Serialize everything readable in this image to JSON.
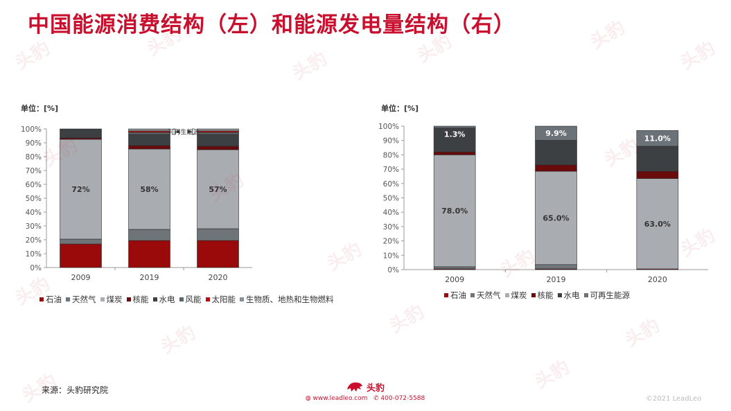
{
  "title": "中国能源消费结构（左）和能源发电量结构（右）",
  "watermark": "头豹",
  "colors": {
    "oil": "#9b0a0a",
    "gas": "#6f7478",
    "coal": "#a9adb1",
    "nuclear": "#6a0b0b",
    "hydro": "#3c4043",
    "wind": "#5e6569",
    "solar": "#b50f0f",
    "biomass": "#8a9094",
    "renew": "#6c7378",
    "axis": "#999999"
  },
  "chart_data": [
    {
      "type": "bar",
      "stacked": true,
      "unit_label": "单位：[%]",
      "categories": [
        "2009",
        "2019",
        "2020"
      ],
      "ylim": [
        0,
        100
      ],
      "yticks": [
        "0%",
        "10%",
        "20%",
        "30%",
        "40%",
        "50%",
        "60%",
        "70%",
        "80%",
        "90%",
        "100%"
      ],
      "series": [
        {
          "name": "石油",
          "color_key": "oil",
          "values": [
            17,
            19.5,
            19.5
          ]
        },
        {
          "name": "天然气",
          "color_key": "gas",
          "values": [
            3.5,
            8,
            8.5
          ]
        },
        {
          "name": "煤炭",
          "color_key": "coal",
          "values": [
            72,
            58,
            57
          ]
        },
        {
          "name": "核能",
          "color_key": "nuclear",
          "values": [
            1,
            2.5,
            2.5
          ]
        },
        {
          "name": "水电",
          "color_key": "hydro",
          "values": [
            6.5,
            8,
            8.5
          ]
        },
        {
          "name": "风能",
          "color_key": "wind",
          "values": [
            0,
            1.5,
            1.5
          ]
        },
        {
          "name": "太阳能",
          "color_key": "solar",
          "values": [
            0,
            1,
            1
          ]
        },
        {
          "name": "生物质、地热和生物燃料",
          "color_key": "biomass",
          "values": [
            0,
            1.5,
            1.5
          ]
        }
      ],
      "labels": [
        {
          "category": 0,
          "series": 2,
          "text": "72%"
        },
        {
          "category": 1,
          "series": 2,
          "text": "58%"
        },
        {
          "category": 2,
          "series": 2,
          "text": "57%"
        }
      ],
      "annotation": "可再生能源"
    },
    {
      "type": "bar",
      "stacked": true,
      "unit_label": "单位：[%]",
      "categories": [
        "2009",
        "2019",
        "2020"
      ],
      "ylim": [
        0,
        100
      ],
      "yticks": [
        "0%",
        "10%",
        "20%",
        "30%",
        "40%",
        "50%",
        "60%",
        "70%",
        "80%",
        "90%",
        "100%"
      ],
      "series": [
        {
          "name": "石油",
          "color_key": "oil",
          "values": [
            0.5,
            0.5,
            0.5
          ]
        },
        {
          "name": "天然气",
          "color_key": "gas",
          "values": [
            1.5,
            3,
            0
          ]
        },
        {
          "name": "煤炭",
          "color_key": "coal",
          "values": [
            78,
            65,
            63
          ]
        },
        {
          "name": "核能",
          "color_key": "nuclear",
          "values": [
            2,
            4.5,
            5
          ]
        },
        {
          "name": "水电",
          "color_key": "hydro",
          "values": [
            16.7,
            17.1,
            17.5
          ]
        },
        {
          "name": "可再生能源",
          "color_key": "renew",
          "values": [
            1.3,
            9.9,
            11
          ]
        }
      ],
      "labels": [
        {
          "category": 0,
          "series": 2,
          "text": "78.0%"
        },
        {
          "category": 1,
          "series": 2,
          "text": "65.0%"
        },
        {
          "category": 2,
          "series": 2,
          "text": "63.0%"
        },
        {
          "category": 0,
          "series": 5,
          "text": "1.3%",
          "offset": 10
        },
        {
          "category": 1,
          "series": 5,
          "text": "9.9%"
        },
        {
          "category": 2,
          "series": 5,
          "text": "11.0%"
        }
      ]
    }
  ],
  "footer": {
    "source": "来源：头豹研究院",
    "logo_text": "头豹",
    "website": "www.leadleo.com",
    "phone": "400-072-5588",
    "copyright": "©2021 LeadLeo"
  }
}
